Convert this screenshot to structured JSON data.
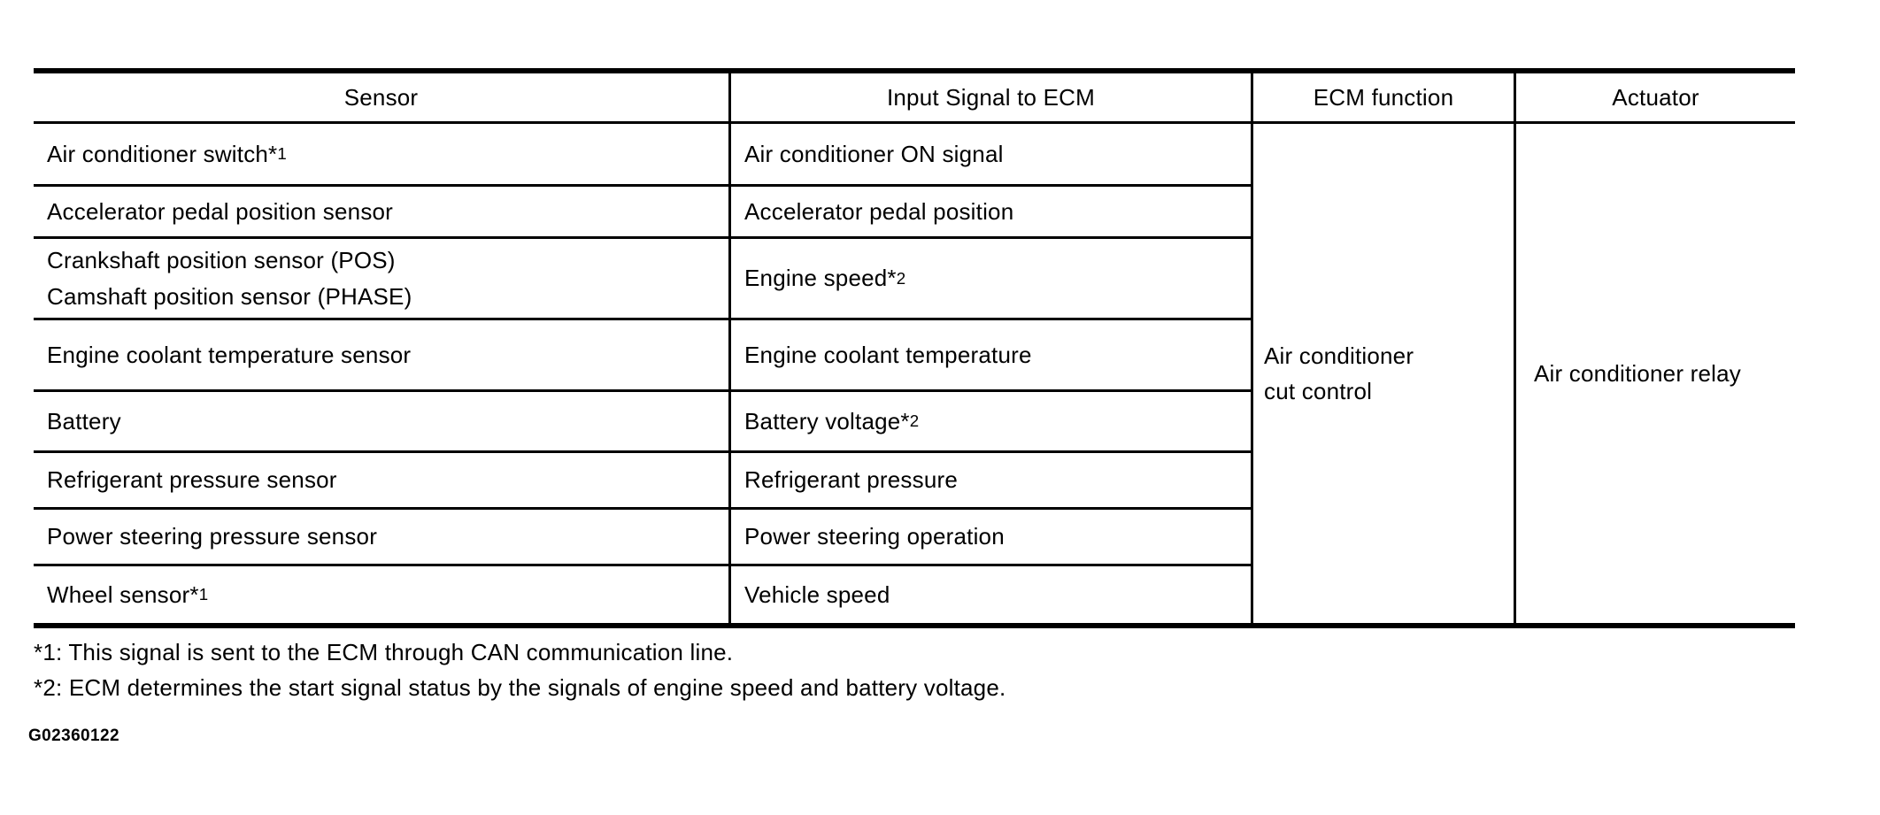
{
  "table": {
    "headers": [
      "Sensor",
      "Input Signal to ECM",
      "ECM function",
      "Actuator"
    ],
    "rows": [
      {
        "sensor": "Air conditioner switch*1",
        "input": "Air conditioner ON signal"
      },
      {
        "sensor": "Accelerator pedal position sensor",
        "input": "Accelerator pedal position"
      },
      {
        "sensor": "Crankshaft position sensor (POS)\nCamshaft position sensor (PHASE)",
        "input": "Engine speed*2"
      },
      {
        "sensor": "Engine coolant temperature sensor",
        "input": "Engine coolant temperature"
      },
      {
        "sensor": "Battery",
        "input": "Battery voltage*2"
      },
      {
        "sensor": "Refrigerant pressure sensor",
        "input": "Refrigerant pressure"
      },
      {
        "sensor": "Power steering pressure sensor",
        "input": "Power steering operation"
      },
      {
        "sensor": "Wheel sensor*1",
        "input": "Vehicle speed"
      }
    ],
    "ecm_function": "Air conditioner\ncut control",
    "actuator": "Air conditioner relay"
  },
  "footnotes": [
    "*1: This signal is sent to the ECM through CAN communication line.",
    "*2: ECM determines the start signal status by the signals of engine speed and battery voltage."
  ],
  "figure_id": "G02360122",
  "colors": {
    "text": "#000000",
    "background": "#ffffff",
    "border": "#000000"
  }
}
